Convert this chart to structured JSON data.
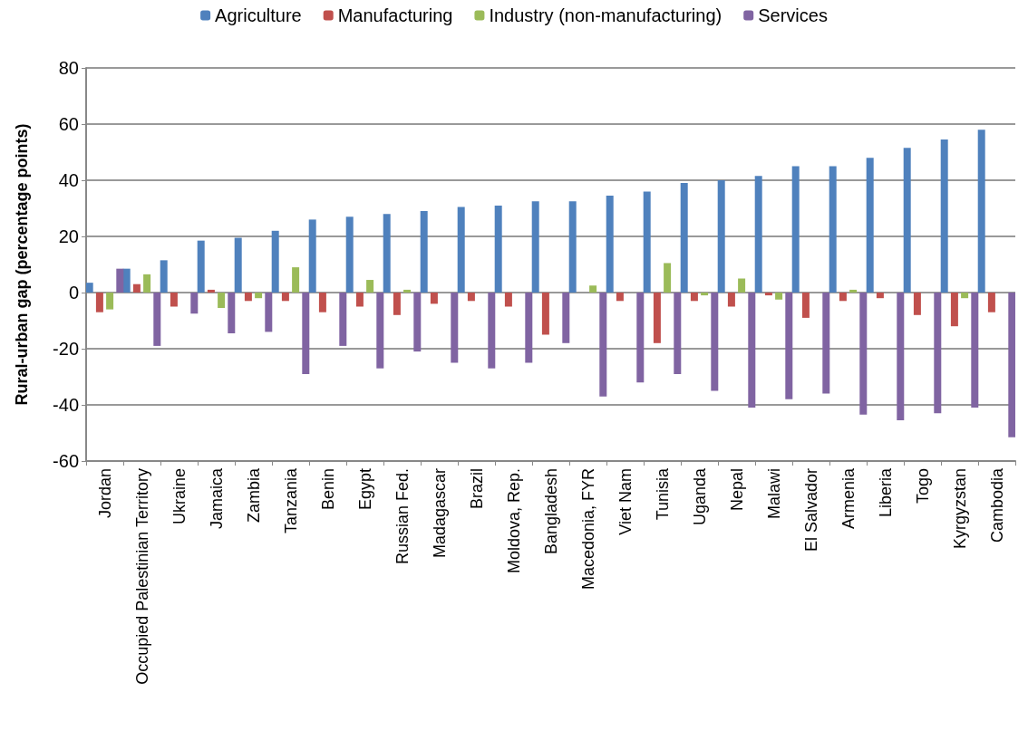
{
  "chart_data": {
    "type": "bar",
    "ylabel": "Rural-urban gap (percentage points)",
    "categories": [
      "Jordan",
      "Occupied Palestinian Territory",
      "Ukraine",
      "Jamaica",
      "Zambia",
      "Tanzania",
      "Benin",
      "Egypt",
      "Russian Fed.",
      "Madagascar",
      "Brazil",
      "Moldova, Rep.",
      "Bangladesh",
      "Macedonia, FYR",
      "Viet Nam",
      "Tunisia",
      "Uganda",
      "Nepal",
      "Malawi",
      "El Salvador",
      "Armenia",
      "Liberia",
      "Togo",
      "Kyrgyzstan",
      "Cambodia"
    ],
    "series": [
      {
        "name": "Agriculture",
        "color": "#4f81bd",
        "values": [
          3.5,
          8.5,
          11.5,
          18.5,
          19.5,
          22,
          26,
          27,
          28,
          29,
          30.5,
          31,
          32.5,
          32.5,
          34.5,
          36,
          39,
          40,
          41.5,
          45,
          45,
          48,
          51.5,
          54.5,
          58
        ]
      },
      {
        "name": "Manufacturing",
        "color": "#c0504d",
        "values": [
          -7,
          3,
          -5,
          1,
          -3,
          -3,
          -7,
          -5,
          -8,
          -4,
          -3,
          -5,
          -15,
          null,
          -3,
          -18,
          -3,
          -5,
          -1,
          -9,
          -3,
          -2,
          -8,
          -12,
          -7
        ]
      },
      {
        "name": "Industry (non-manufacturing)",
        "color": "#9bbb59",
        "values": [
          -6,
          6.5,
          null,
          -5.5,
          -2,
          9,
          null,
          4.5,
          1,
          null,
          null,
          null,
          null,
          2.5,
          null,
          10.5,
          -1,
          5,
          -2.5,
          null,
          1,
          null,
          null,
          -2,
          null
        ]
      },
      {
        "name": "Services",
        "color": "#8064a2",
        "values": [
          8.5,
          -19,
          -7.5,
          -14.5,
          -14,
          -29,
          -19,
          -27,
          -21,
          -25,
          -27,
          -25,
          -18,
          -37,
          -32,
          -29,
          -35,
          -41,
          -38,
          -36,
          -43.5,
          -45.5,
          -43,
          -41,
          -51.5
        ]
      }
    ],
    "ylim": [
      -60,
      80
    ],
    "yticks": [
      -60,
      -40,
      -20,
      0,
      20,
      40,
      60,
      80
    ],
    "grid": "y",
    "legend": "top"
  }
}
